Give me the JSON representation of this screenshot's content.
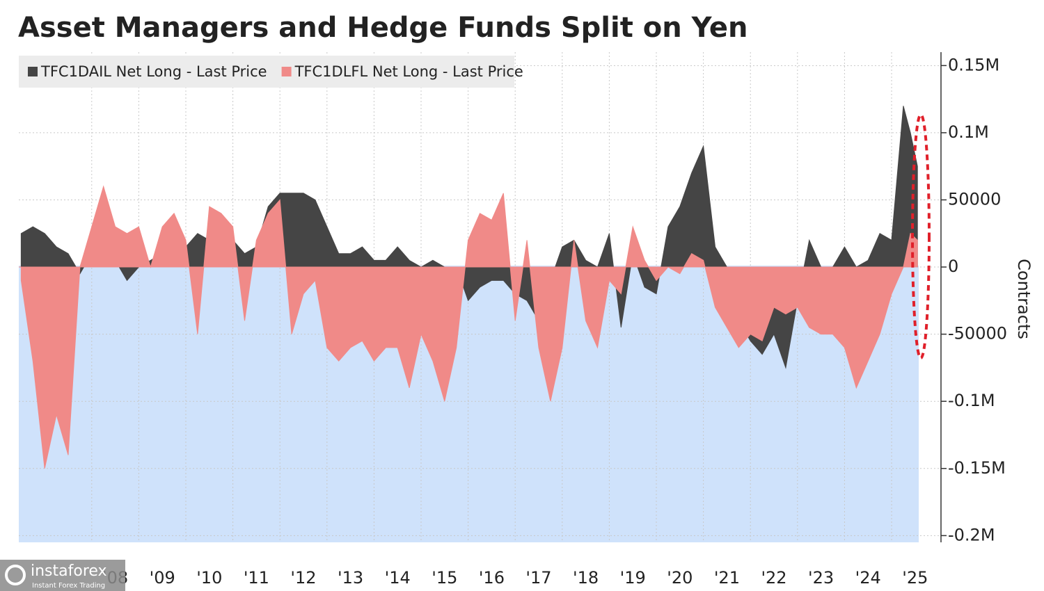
{
  "chart_data": {
    "type": "area",
    "title": "Asset Managers and Hedge Funds Split on Yen",
    "y_axis_label": "Contracts",
    "watermark_text": "instaforex",
    "watermark_subtext": "Instant Forex Trading",
    "grid": true,
    "legend_position": "top-left",
    "xlim": [
      2006.45,
      2026.05
    ],
    "xticks": [
      {
        "value": 2008,
        "label": "'08"
      },
      {
        "value": 2009,
        "label": "'09"
      },
      {
        "value": 2010,
        "label": "'10"
      },
      {
        "value": 2011,
        "label": "'11"
      },
      {
        "value": 2012,
        "label": "'12"
      },
      {
        "value": 2013,
        "label": "'13"
      },
      {
        "value": 2014,
        "label": "'14"
      },
      {
        "value": 2015,
        "label": "'15"
      },
      {
        "value": 2016,
        "label": "'16"
      },
      {
        "value": 2017,
        "label": "'17"
      },
      {
        "value": 2018,
        "label": "'18"
      },
      {
        "value": 2019,
        "label": "'19"
      },
      {
        "value": 2020,
        "label": "'20"
      },
      {
        "value": 2021,
        "label": "'21"
      },
      {
        "value": 2022,
        "label": "'22"
      },
      {
        "value": 2023,
        "label": "'23"
      },
      {
        "value": 2024,
        "label": "'24"
      },
      {
        "value": 2025,
        "label": "'25"
      }
    ],
    "ylim": [
      -205000,
      160000
    ],
    "yticks": [
      {
        "value": 150000,
        "label": "0.15M"
      },
      {
        "value": 100000,
        "label": "0.1M"
      },
      50000,
      0,
      -50000,
      {
        "value": -100000,
        "label": "-0.1M"
      },
      {
        "value": -150000,
        "label": "-0.15M"
      },
      {
        "value": -200000,
        "label": "-0.2M"
      }
    ],
    "x": [
      2006.5,
      2006.75,
      2007,
      2007.25,
      2007.5,
      2007.75,
      2008,
      2008.25,
      2008.5,
      2008.75,
      2009,
      2009.25,
      2009.5,
      2009.75,
      2010,
      2010.25,
      2010.5,
      2010.75,
      2011,
      2011.25,
      2011.5,
      2011.75,
      2012,
      2012.25,
      2012.5,
      2012.75,
      2013,
      2013.25,
      2013.5,
      2013.75,
      2014,
      2014.25,
      2014.5,
      2014.75,
      2015,
      2015.25,
      2015.5,
      2015.75,
      2016,
      2016.25,
      2016.5,
      2016.75,
      2017,
      2017.25,
      2017.5,
      2017.75,
      2018,
      2018.25,
      2018.5,
      2018.75,
      2019,
      2019.25,
      2019.5,
      2019.75,
      2020,
      2020.25,
      2020.5,
      2020.75,
      2021,
      2021.25,
      2021.5,
      2021.75,
      2022,
      2022.25,
      2022.5,
      2022.75,
      2023,
      2023.25,
      2023.5,
      2023.75,
      2024,
      2024.25,
      2024.5,
      2024.75,
      2025,
      2025.25,
      2025.4,
      2025.55
    ],
    "series": [
      {
        "name": "TFC1DAIL Net Long - Last Price",
        "color": "#454545",
        "values": [
          25000,
          30000,
          25000,
          15000,
          10000,
          -5000,
          10000,
          10000,
          5000,
          -10000,
          0,
          5000,
          10000,
          15000,
          15000,
          25000,
          20000,
          20000,
          20000,
          10000,
          15000,
          45000,
          55000,
          55000,
          55000,
          50000,
          30000,
          10000,
          10000,
          15000,
          5000,
          5000,
          15000,
          5000,
          0,
          5000,
          0,
          0,
          -25000,
          -15000,
          -10000,
          -10000,
          -20000,
          -25000,
          -40000,
          -10000,
          15000,
          20000,
          5000,
          0,
          25000,
          -45000,
          10000,
          -15000,
          -20000,
          30000,
          45000,
          70000,
          90000,
          15000,
          0,
          -40000,
          -55000,
          -65000,
          -50000,
          -75000,
          -25000,
          20000,
          0,
          0,
          15000,
          0,
          5000,
          25000,
          20000,
          120000,
          100000,
          75000
        ]
      },
      {
        "name": "TFC1DLFL Net Long - Last Price",
        "color": "#f08a88",
        "values": [
          -10000,
          -70000,
          -150000,
          -110000,
          -140000,
          0,
          30000,
          60000,
          30000,
          25000,
          30000,
          0,
          30000,
          40000,
          20000,
          -50000,
          45000,
          40000,
          30000,
          -40000,
          20000,
          40000,
          50000,
          -50000,
          -20000,
          -10000,
          -60000,
          -70000,
          -60000,
          -55000,
          -70000,
          -60000,
          -60000,
          -90000,
          -50000,
          -70000,
          -100000,
          -60000,
          20000,
          40000,
          35000,
          55000,
          -40000,
          20000,
          -60000,
          -100000,
          -60000,
          20000,
          -40000,
          -60000,
          -10000,
          -20000,
          30000,
          5000,
          -10000,
          0,
          -5000,
          10000,
          5000,
          -30000,
          -45000,
          -60000,
          -50000,
          -55000,
          -30000,
          -35000,
          -30000,
          -45000,
          -50000,
          -50000,
          -60000,
          -90000,
          -70000,
          -50000,
          -20000,
          0,
          25000,
          20000
        ]
      }
    ]
  }
}
